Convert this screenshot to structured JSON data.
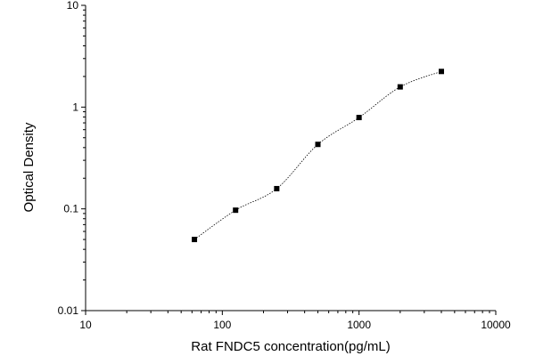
{
  "chart_data": {
    "type": "scatter",
    "title": "",
    "xlabel": "Rat FNDC5 concentration(pg/mL)",
    "ylabel": "Optical Density",
    "xscale": "log",
    "yscale": "log",
    "xlim": [
      10,
      10000
    ],
    "ylim": [
      0.01,
      10
    ],
    "x_ticks": [
      {
        "value": 10,
        "label": "10"
      },
      {
        "value": 100,
        "label": "100"
      },
      {
        "value": 1000,
        "label": "1000"
      },
      {
        "value": 10000,
        "label": "10000"
      }
    ],
    "y_ticks": [
      {
        "value": 0.01,
        "label": "0.01"
      },
      {
        "value": 0.1,
        "label": "0.1"
      },
      {
        "value": 1,
        "label": "1"
      },
      {
        "value": 10,
        "label": "10"
      }
    ],
    "grid": false,
    "legend": "none",
    "marker": "square",
    "fit_curve": "dotted",
    "series": [
      {
        "x": [
          62.5,
          125,
          250,
          500,
          1000,
          2000,
          4000
        ],
        "y": [
          0.05,
          0.097,
          0.158,
          0.43,
          0.79,
          1.58,
          2.24
        ]
      }
    ],
    "colors": {
      "marker": "#000000",
      "axis": "#000000",
      "curve": "#000000"
    }
  }
}
